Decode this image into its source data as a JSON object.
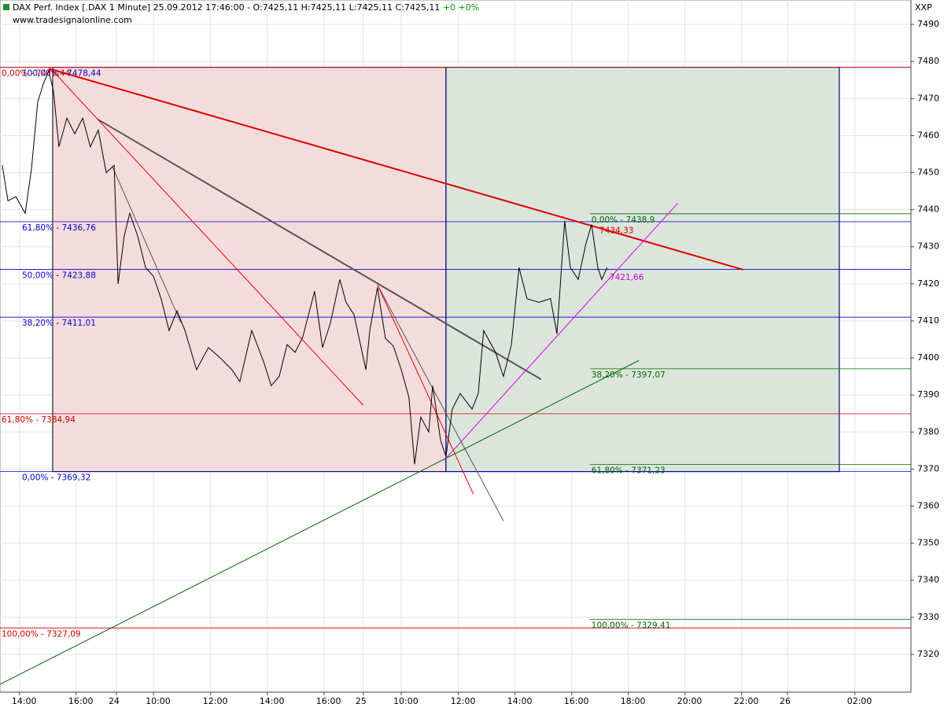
{
  "chart_data": {
    "type": "line",
    "title": "DAX Perf. Index [.DAX 1 Minute] 25.09.2012 17:46:00 - O:7425,11 H:7425,11 L:7425,11 C:7425,11",
    "change": "+0 +0%",
    "source": "www.tradesignalonline.com",
    "corner_label": "XXP",
    "color": "#000000",
    "x": [
      0.08,
      0.28,
      0.56,
      0.89,
      1.11,
      1.33,
      1.53,
      1.72,
      1.89,
      2.08,
      2.36,
      2.64,
      2.92,
      3.19,
      3.47,
      3.75,
      4.03,
      4.17,
      4.39,
      4.58,
      4.86,
      5.14,
      5.42,
      5.69,
      5.97,
      6.25,
      6.53,
      6.94,
      7.36,
      7.78,
      8.19,
      8.47,
      8.89,
      9.31,
      9.58,
      9.86,
      10.14,
      10.42,
      10.69,
      11.11,
      11.39,
      11.67,
      12.0,
      12.22,
      12.5,
      12.92,
      13.06,
      13.33,
      13.61,
      13.89,
      14.17,
      14.44,
      14.64,
      14.86,
      15.14,
      15.28,
      15.56,
      15.75,
      15.97,
      16.25,
      16.67,
      16.89,
      17.08,
      17.5,
      17.78,
      18.06,
      18.33,
      18.61,
      19.03,
      19.44,
      19.67,
      19.94,
      20.14,
      20.42,
      20.69,
      20.89,
      21.11,
      21.25,
      21.44
    ],
    "values": [
      7452,
      7442.4,
      7443.5,
      7439,
      7451,
      7469,
      7474,
      7477.5,
      7472,
      7457,
      7464.7,
      7460.5,
      7464.7,
      7457,
      7461.5,
      7450,
      7452,
      7420,
      7433,
      7439,
      7433,
      7424.4,
      7422,
      7416,
      7407.4,
      7412.7,
      7407.4,
      7396.8,
      7402.8,
      7400,
      7396.8,
      7393.6,
      7407.4,
      7399,
      7392.5,
      7395,
      7403.6,
      7401.5,
      7405.6,
      7418,
      7402.8,
      7409.5,
      7421.2,
      7415,
      7411.7,
      7396.8,
      7407.4,
      7419,
      7405.3,
      7403.2,
      7396.8,
      7389.4,
      7371.3,
      7384,
      7380,
      7392.5,
      7377.7,
      7373.4,
      7386.2,
      7390.4,
      7386.2,
      7390.4,
      7407.4,
      7401.5,
      7395,
      7403.6,
      7424.4,
      7416,
      7415,
      7416,
      7406.5,
      7437,
      7424.4,
      7421.2,
      7430.8,
      7436,
      7424.4,
      7421.2,
      7424.4
    ],
    "xlim": [
      0,
      32.17
    ],
    "ylim": [
      7309.8,
      7496.6
    ],
    "yticks": [
      7320,
      7330,
      7340,
      7350,
      7360,
      7370,
      7380,
      7390,
      7400,
      7410,
      7420,
      7430,
      7440,
      7450,
      7460,
      7470,
      7480,
      7490
    ],
    "xticks": [
      {
        "value": 0.69,
        "label": "14:00"
      },
      {
        "value": 2.69,
        "label": "16:00"
      },
      {
        "value": 4.11,
        "label": "24"
      },
      {
        "value": 5.42,
        "label": "10:00"
      },
      {
        "value": 7.44,
        "label": "12:00"
      },
      {
        "value": 9.44,
        "label": "14:00"
      },
      {
        "value": 11.44,
        "label": "16:00"
      },
      {
        "value": 12.83,
        "label": "25"
      },
      {
        "value": 14.17,
        "label": "10:00"
      },
      {
        "value": 16.19,
        "label": "12:00"
      },
      {
        "value": 18.19,
        "label": "14:00"
      },
      {
        "value": 20.19,
        "label": "16:00"
      },
      {
        "value": 22.19,
        "label": "18:00"
      },
      {
        "value": 24.19,
        "label": "20:00"
      },
      {
        "value": 26.19,
        "label": "22:00"
      },
      {
        "value": 27.81,
        "label": "26"
      },
      {
        "value": 30.19,
        "label": "02:00"
      }
    ],
    "grid": true,
    "boxes": [
      {
        "x": [
          1.86,
          15.75
        ],
        "y": [
          7369.32,
          7478.44
        ],
        "fill": "#f5dcdc",
        "stroke": "#222222"
      },
      {
        "x": [
          15.75,
          29.64
        ],
        "y": [
          7369.32,
          7478.44
        ],
        "fill": "#dce5dc",
        "stroke": "#000080"
      }
    ],
    "levels": [
      {
        "label": "100,00% - 7478,44",
        "value": 7478.44,
        "color": "#0000cc",
        "x": 0
      },
      {
        "label": "0,00% - 7478,44",
        "value": 7478.44,
        "color": "#cc0000",
        "x": 0
      },
      {
        "label": "61,80% - 7436,76",
        "value": 7436.76,
        "color": "#0000cc",
        "x": 0
      },
      {
        "label": "50,00% - 7423,88",
        "value": 7423.88,
        "color": "#0000cc",
        "x": 0
      },
      {
        "label": "38,20% - 7411,01",
        "value": 7411.01,
        "color": "#0000cc",
        "x": 0
      },
      {
        "label": "0,00% - 7369,32",
        "value": 7369.32,
        "color": "#0000cc",
        "x": 0
      },
      {
        "label": "61,80% - 7384,94",
        "value": 7384.94,
        "color": "#cc0000",
        "x": 0
      },
      {
        "label": "100,00% - 7327,09",
        "value": 7327.09,
        "color": "#cc0000",
        "x": 0
      },
      {
        "label": "0,00% - 7438,9",
        "value": 7438.9,
        "color": "#006600",
        "x": 20.83
      },
      {
        "label": "38,20% - 7397,07",
        "value": 7397.07,
        "color": "#006600",
        "x": 20.83
      },
      {
        "label": "61,80% - 7371,23",
        "value": 7371.23,
        "color": "#006600",
        "x": 20.83
      },
      {
        "label": "100,00% - 7329,41",
        "value": 7329.41,
        "color": "#006600",
        "x": 20.83
      }
    ],
    "trendlines": [
      {
        "x": [
          1.72,
          26.25
        ],
        "y": [
          7478.1,
          7423.8
        ],
        "color": "#dd0000",
        "width": 2
      },
      {
        "x": [
          3.47,
          19.11
        ],
        "y": [
          7464.3,
          7394.2
        ],
        "color": "#555555",
        "width": 2
      },
      {
        "x": [
          1.81,
          12.83
        ],
        "y": [
          7477.9,
          7387.2
        ],
        "color": "#ee0000",
        "width": 1
      },
      {
        "x": [
          3.97,
          6.39
        ],
        "y": [
          7451.6,
          7409.5
        ],
        "color": "#555555",
        "width": 1
      },
      {
        "x": [
          13.33,
          17.78
        ],
        "y": [
          7419.7,
          7356
        ],
        "color": "#555555",
        "width": 1
      },
      {
        "x": [
          13.33,
          16.72
        ],
        "y": [
          7419.7,
          7363.2
        ],
        "color": "#ee0000",
        "width": 1
      },
      {
        "x": [
          0,
          22.56
        ],
        "y": [
          7311.9,
          7399.3
        ],
        "color": "#006600",
        "width": 1
      },
      {
        "x": [
          15.69,
          23.94
        ],
        "y": [
          7372.4,
          7441.8
        ],
        "color": "#dd00dd",
        "width": 1
      }
    ],
    "annotations": [
      {
        "text": "7434,33",
        "x": 21.17,
        "y": 7434.33,
        "color": "#cc0000"
      },
      {
        "text": "7421,66",
        "x": 21.53,
        "y": 7421.66,
        "color": "#cc00cc"
      }
    ]
  }
}
